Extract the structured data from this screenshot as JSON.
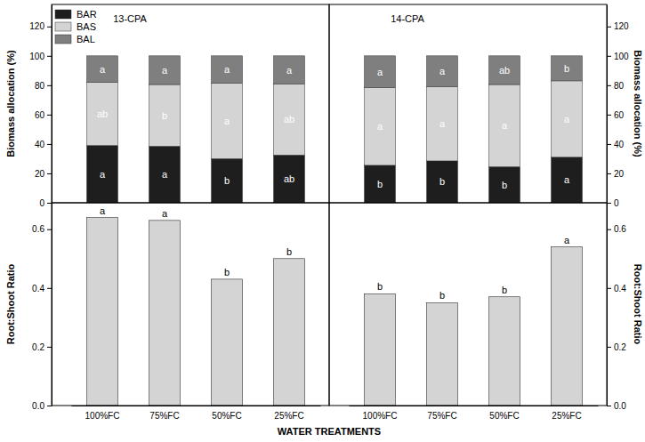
{
  "chart_data": [
    {
      "type": "bar",
      "stacked": true,
      "title": "13-CPA",
      "y_label": "Biomass allocation (%)",
      "ylim": [
        0,
        135
      ],
      "yticks": [
        0,
        20,
        40,
        60,
        80,
        100,
        120
      ],
      "tick_labels": "y",
      "legend": "upper left",
      "series": [
        {
          "name": "BAR",
          "color": "#1e1e1e",
          "values": [
            39,
            38.5,
            30,
            32.5
          ],
          "letters": [
            "a",
            "a",
            "b",
            "ab"
          ]
        },
        {
          "name": "BAS",
          "color": "#d4d4d4",
          "values": [
            43,
            42,
            51.5,
            48.5
          ],
          "letters": [
            "ab",
            "b",
            "a",
            "ab"
          ]
        },
        {
          "name": "BAL",
          "color": "#7f7f7f",
          "values": [
            18,
            19.5,
            18.5,
            19
          ],
          "letters": [
            "a",
            "a",
            "a",
            "a"
          ]
        }
      ]
    },
    {
      "type": "bar",
      "stacked": true,
      "title": "14-CPA",
      "y_label": "Biomass allocation (%)",
      "ylim": [
        0,
        135
      ],
      "yticks": [
        0,
        20,
        40,
        60,
        80,
        100,
        120
      ],
      "tick_labels": "y",
      "series": [
        {
          "name": "BAR",
          "color": "#1e1e1e",
          "values": [
            25.5,
            28.5,
            24.5,
            31
          ],
          "letters": [
            "b",
            "b",
            "b",
            "a"
          ]
        },
        {
          "name": "BAS",
          "color": "#d4d4d4",
          "values": [
            53,
            50.5,
            56,
            52
          ],
          "letters": [
            "a",
            "a",
            "a",
            "a"
          ]
        },
        {
          "name": "BAL",
          "color": "#7f7f7f",
          "values": [
            21.5,
            21,
            19.5,
            17
          ],
          "letters": [
            "a",
            "a",
            "ab",
            "b"
          ]
        }
      ]
    },
    {
      "type": "bar",
      "y_label": "Root:Shoot Ratio",
      "x_label": "WATER TREATMENTS",
      "categories": [
        "100%FC",
        "75%FC",
        "50%FC",
        "25%FC"
      ],
      "values": [
        0.64,
        0.63,
        0.43,
        0.5
      ],
      "letters": [
        "a",
        "a",
        "b",
        "b"
      ],
      "color": "#d4d4d4",
      "ylim": [
        0,
        0.69
      ],
      "yticks": [
        {
          "value": 0,
          "label": "0.0"
        },
        {
          "value": 0.2,
          "label": "0.2"
        },
        {
          "value": 0.4,
          "label": "0.4"
        },
        {
          "value": 0.6,
          "label": "0.6"
        }
      ]
    },
    {
      "type": "bar",
      "y_label": "Root:Shoot Ratio",
      "categories": [
        "100%FC",
        "75%FC",
        "50%FC",
        "25%FC"
      ],
      "values": [
        0.38,
        0.35,
        0.37,
        0.54
      ],
      "letters": [
        "b",
        "b",
        "b",
        "a"
      ],
      "color": "#d4d4d4",
      "ylim": [
        0,
        0.69
      ],
      "yticks": [
        {
          "value": 0,
          "label": "0.0"
        },
        {
          "value": 0.2,
          "label": "0.2"
        },
        {
          "value": 0.4,
          "label": "0.4"
        },
        {
          "value": 0.6,
          "label": "0.6"
        }
      ]
    }
  ]
}
